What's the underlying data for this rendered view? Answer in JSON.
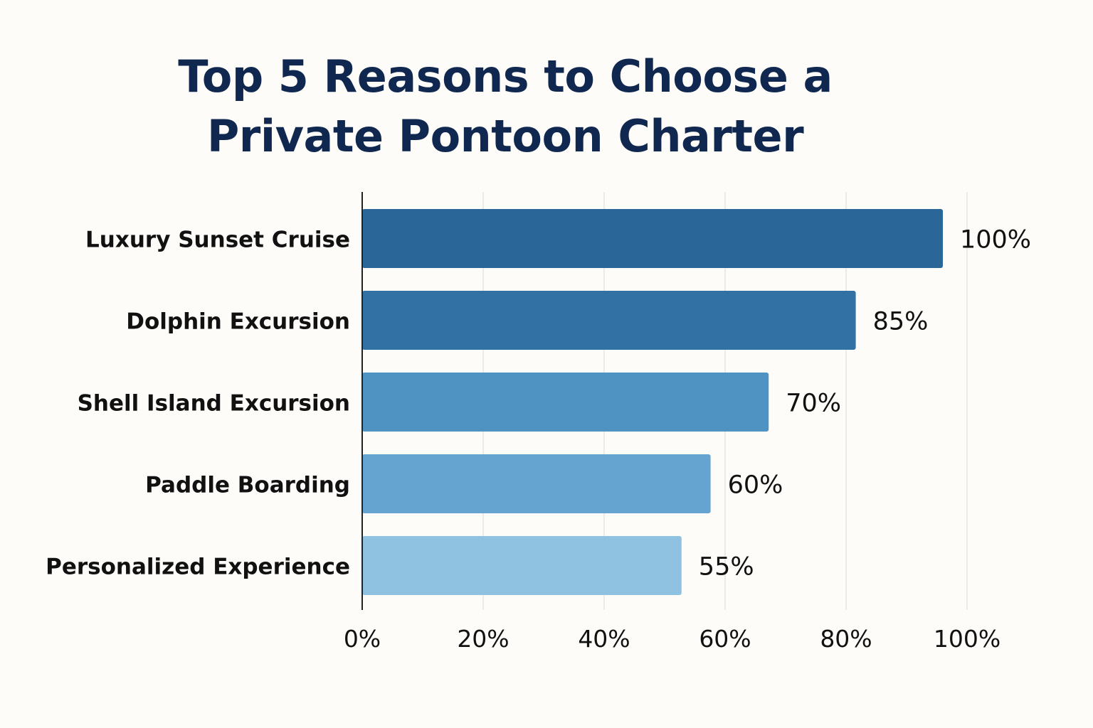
{
  "title_lines": [
    "Top 5 Reasons to Choose a",
    "Private Pontoon Charter"
  ],
  "chart_data": {
    "type": "bar",
    "orientation": "horizontal",
    "title": "Top 5 Reasons to Choose a Private Pontoon Charter",
    "categories": [
      "Luxury Sunset Cruise",
      "Dolphin Excursion",
      "Shell Island Excursion",
      "Paddle Boarding",
      "Personalized Experience"
    ],
    "values": [
      100,
      85,
      70,
      60,
      55
    ],
    "value_labels": [
      "100%",
      "85%",
      "70%",
      "60%",
      "55%"
    ],
    "x_ticks": [
      0,
      20,
      40,
      60,
      80,
      100
    ],
    "x_tick_labels": [
      "0%",
      "20%",
      "40%",
      "60%",
      "80%",
      "100%"
    ],
    "xlim": [
      0,
      100
    ],
    "xlabel": "",
    "ylabel": "",
    "grid": true,
    "legend": "none",
    "bar_colors": [
      "#2b6698",
      "#3171a4",
      "#4f93c3",
      "#65a4d0",
      "#8fc1e1"
    ],
    "grid_color": "#e5e5e5",
    "axis_color": "#222222",
    "title_color": "#10284f",
    "text_color": "#111111"
  }
}
